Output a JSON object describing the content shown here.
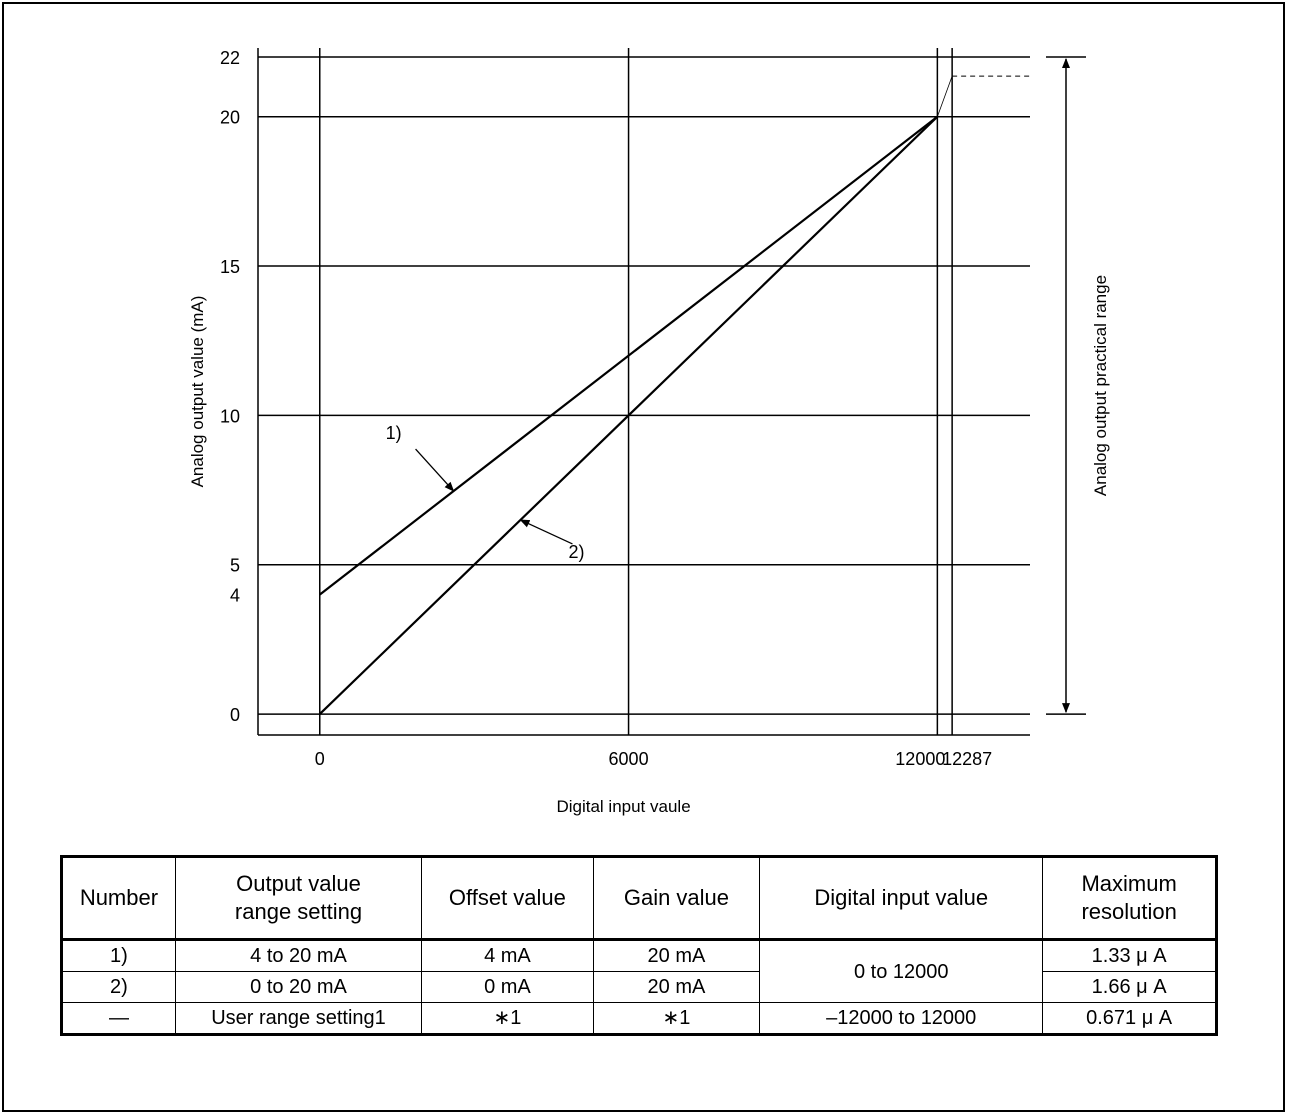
{
  "chart_data": {
    "type": "line",
    "xlabel": "Digital input vaule",
    "ylabel": "Analog output value (mA)",
    "range_label": "Analog output practical range",
    "x_ticks": [
      0,
      6000,
      12000,
      12287
    ],
    "y_ticks": [
      0,
      4,
      5,
      10,
      15,
      20,
      22
    ],
    "xlim": [
      -1200,
      13800
    ],
    "ylim": [
      -0.7,
      22.3
    ],
    "grid": true,
    "series": [
      {
        "name": "1)",
        "x": [
          0,
          12000
        ],
        "y": [
          4,
          20
        ]
      },
      {
        "name": "2)",
        "x": [
          0,
          12000
        ],
        "y": [
          0,
          20
        ]
      }
    ],
    "annotations": [
      {
        "text": "1)",
        "series": "1)",
        "at_x": 2600
      },
      {
        "text": "2)",
        "series": "2)",
        "at_x": 3900
      }
    ]
  },
  "table": {
    "headers": [
      "Number",
      "Output value range setting",
      "Offset value",
      "Gain value",
      "Digital input value",
      "Maximum resolution"
    ],
    "header_lines": [
      [
        "Number"
      ],
      [
        "Output value",
        "range setting"
      ],
      [
        "Offset value"
      ],
      [
        "Gain value"
      ],
      [
        "Digital input value"
      ],
      [
        "Maximum",
        "resolution"
      ]
    ],
    "rows": [
      {
        "number": "1)",
        "range": "4 to 20 mA",
        "offset": "4 mA",
        "gain": "20 mA",
        "digital": "0 to 12000",
        "resolution": "1.33 μ A"
      },
      {
        "number": "2)",
        "range": "0 to 20 mA",
        "offset": "0 mA",
        "gain": "20 mA",
        "digital": "0 to 12000",
        "resolution": "1.66 μ A"
      },
      {
        "number": "—",
        "range": "User range setting1",
        "offset": "∗1",
        "gain": "∗1",
        "digital": "–12000 to 12000",
        "resolution": "0.671 μ A"
      }
    ]
  }
}
